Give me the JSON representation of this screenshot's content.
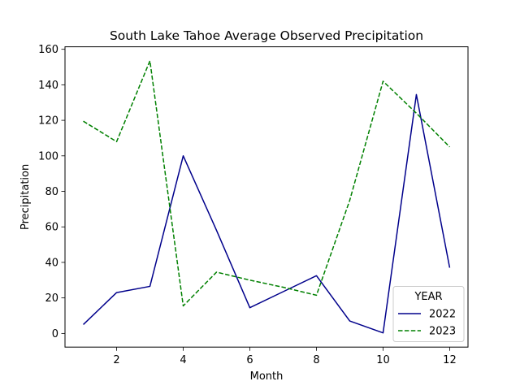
{
  "chart_data": {
    "type": "line",
    "title": "South Lake Tahoe Average Observed Precipitation",
    "xlabel": "Month",
    "ylabel": "Precipitation",
    "xlim": [
      0.45,
      12.55
    ],
    "ylim": [
      -7.7,
      161.4
    ],
    "xticks": [
      2,
      4,
      6,
      8,
      10,
      12
    ],
    "yticks": [
      0,
      20,
      40,
      60,
      80,
      100,
      120,
      140,
      160
    ],
    "grid": false,
    "legend": {
      "title": "YEAR",
      "position": "lower-right"
    },
    "x": [
      1,
      2,
      3,
      4,
      5,
      6,
      7,
      8,
      9,
      10,
      11,
      12
    ],
    "series": [
      {
        "name": "2022",
        "color": "#00008b",
        "style": "solid",
        "values": [
          5.0,
          23.0,
          26.5,
          100.0,
          58.0,
          14.5,
          23.5,
          32.5,
          7.0,
          0.3,
          134.5,
          37.0
        ]
      },
      {
        "name": "2023",
        "color": "#008000",
        "style": "dashed",
        "values": [
          119.5,
          108.0,
          153.5,
          15.5,
          34.5,
          30.0,
          26.0,
          21.5,
          75.0,
          142.0,
          124.0,
          105.0
        ]
      }
    ]
  }
}
